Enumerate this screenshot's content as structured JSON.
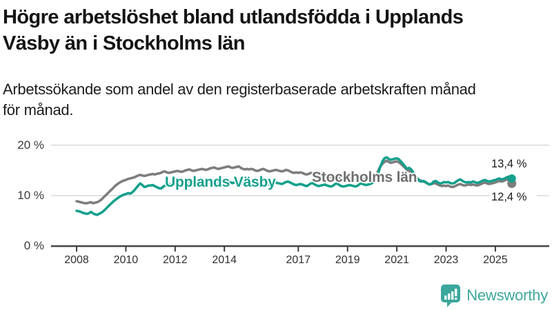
{
  "header": {
    "title_lines": [
      "Högre arbetslöshet bland utlandsfödda i Upplands",
      "Väsby än i Stockholms län"
    ],
    "subtitle_lines": [
      "Arbetssökande som andel av den registerbaserade arbetskraften månad",
      "för månad."
    ]
  },
  "chart_data": {
    "type": "line",
    "title": "Högre arbetslöshet bland utlandsfödda i Upplands Väsby än i Stockholms län",
    "subtitle": "Arbetssökande som andel av den registerbaserade arbetskraften månad för månad.",
    "frequency": "monthly",
    "x_start_year": 2008,
    "x_start_month": 1,
    "x_end_year": 2025,
    "x_end_month": 9,
    "grid": "horizontal",
    "legend_position": "on-line-labels",
    "ylim": [
      0,
      21.5
    ],
    "x_ticks": [
      {
        "value": 2008,
        "label": "2008"
      },
      {
        "value": 2010,
        "label": "2010"
      },
      {
        "value": 2012,
        "label": "2012"
      },
      {
        "value": 2014,
        "label": "2014"
      },
      {
        "value": 2017,
        "label": "2017"
      },
      {
        "value": 2019,
        "label": "2019"
      },
      {
        "value": 2021,
        "label": "2021"
      },
      {
        "value": 2023,
        "label": "2023"
      },
      {
        "value": 2025,
        "label": "2025"
      }
    ],
    "y_ticks": [
      {
        "value": 0,
        "label": "0 %"
      },
      {
        "value": 10,
        "label": "10 %"
      },
      {
        "value": 20,
        "label": "20 %"
      }
    ],
    "series": [
      {
        "name": "Upplands Väsby",
        "color": "#14A08C",
        "end_label": "13,4 %",
        "end_value": 13.4,
        "values": [
          7.0,
          6.9,
          6.8,
          6.6,
          6.5,
          6.4,
          6.5,
          6.8,
          6.5,
          6.3,
          6.2,
          6.4,
          6.6,
          6.9,
          7.3,
          7.7,
          8.1,
          8.5,
          8.9,
          9.2,
          9.5,
          9.8,
          10.0,
          10.2,
          10.3,
          10.5,
          10.4,
          10.6,
          11.0,
          11.5,
          12.0,
          12.4,
          12.1,
          11.7,
          11.8,
          12.0,
          12.0,
          12.1,
          11.9,
          11.7,
          11.5,
          11.4,
          11.7,
          12.0,
          12.2,
          12.3,
          12.2,
          12.1,
          12.2,
          12.3,
          12.2,
          12.1,
          12.2,
          12.4,
          12.6,
          12.7,
          12.5,
          12.4,
          12.3,
          12.4,
          12.5,
          12.6,
          12.5,
          12.4,
          12.5,
          12.7,
          12.9,
          13.0,
          12.8,
          12.6,
          12.5,
          12.6,
          12.7,
          12.8,
          12.7,
          12.6,
          12.5,
          12.6,
          12.8,
          12.9,
          12.7,
          12.5,
          12.4,
          12.5,
          12.4,
          12.5,
          12.6,
          12.4,
          12.3,
          12.5,
          12.8,
          12.9,
          12.6,
          12.3,
          12.2,
          12.3,
          12.4,
          12.6,
          12.5,
          12.4,
          12.3,
          12.5,
          12.7,
          12.8,
          12.6,
          12.4,
          12.2,
          12.1,
          12.2,
          12.3,
          12.2,
          12.0,
          11.9,
          12.1,
          12.4,
          12.5,
          12.2,
          12.0,
          11.9,
          12.0,
          12.1,
          12.2,
          12.0,
          11.9,
          11.8,
          12.0,
          12.3,
          12.4,
          12.1,
          11.9,
          11.8,
          11.9,
          12.0,
          12.1,
          12.0,
          11.9,
          11.8,
          12.0,
          12.3,
          12.4,
          12.2,
          12.1,
          12.2,
          12.3,
          12.5,
          12.7,
          13.2,
          14.5,
          15.8,
          16.8,
          17.4,
          17.6,
          17.3,
          17.1,
          17.2,
          17.3,
          17.4,
          17.2,
          16.8,
          16.3,
          15.8,
          15.3,
          15.5,
          15.2,
          14.6,
          14.0,
          13.4,
          12.9,
          12.8,
          12.9,
          12.7,
          12.4,
          12.2,
          12.4,
          12.8,
          12.9,
          12.6,
          12.4,
          12.5,
          12.7,
          12.6,
          12.7,
          12.5,
          12.4,
          12.5,
          12.8,
          13.1,
          13.2,
          12.9,
          12.7,
          12.6,
          12.7,
          12.6,
          12.8,
          12.7,
          12.5,
          12.6,
          12.8,
          13.0,
          13.1,
          12.9,
          12.8,
          12.9,
          13.0,
          13.1,
          13.3,
          13.4,
          13.2,
          13.3,
          13.5,
          13.7,
          13.8,
          13.4
        ]
      },
      {
        "name": "Stockholms län",
        "color": "#7d7d7d",
        "end_label": "12,4 %",
        "end_value": 12.4,
        "values": [
          8.9,
          8.8,
          8.7,
          8.6,
          8.5,
          8.5,
          8.6,
          8.7,
          8.5,
          8.6,
          8.7,
          8.9,
          9.2,
          9.6,
          10.0,
          10.4,
          10.8,
          11.2,
          11.6,
          12.0,
          12.3,
          12.6,
          12.8,
          13.0,
          13.1,
          13.3,
          13.4,
          13.5,
          13.6,
          13.8,
          14.0,
          14.1,
          14.0,
          13.9,
          14.0,
          14.1,
          14.2,
          14.3,
          14.2,
          14.3,
          14.4,
          14.5,
          14.7,
          14.8,
          14.6,
          14.5,
          14.6,
          14.7,
          14.8,
          14.9,
          14.8,
          14.7,
          14.8,
          15.0,
          15.1,
          15.2,
          15.0,
          14.9,
          15.0,
          15.1,
          15.2,
          15.3,
          15.2,
          15.1,
          15.2,
          15.4,
          15.5,
          15.6,
          15.4,
          15.3,
          15.4,
          15.5,
          15.6,
          15.7,
          15.8,
          15.6,
          15.5,
          15.6,
          15.7,
          15.8,
          15.5,
          15.3,
          15.2,
          15.3,
          15.2,
          15.3,
          15.2,
          15.0,
          14.9,
          15.0,
          15.2,
          15.3,
          15.1,
          14.9,
          14.8,
          14.9,
          15.0,
          15.1,
          15.0,
          14.9,
          14.8,
          14.9,
          15.1,
          15.0,
          14.8,
          14.6,
          14.5,
          14.6,
          14.5,
          14.6,
          14.5,
          14.3,
          14.2,
          14.3,
          14.5,
          14.4,
          14.2,
          14.0,
          13.9,
          14.0,
          13.9,
          14.0,
          13.9,
          13.7,
          13.6,
          13.7,
          13.9,
          13.8,
          13.6,
          13.4,
          13.3,
          13.4,
          13.3,
          13.4,
          13.3,
          13.2,
          13.1,
          13.2,
          13.4,
          13.5,
          13.3,
          13.2,
          13.3,
          13.4,
          13.5,
          13.6,
          14.0,
          15.0,
          15.8,
          16.3,
          16.7,
          16.9,
          16.7,
          16.5,
          16.6,
          16.7,
          16.8,
          16.6,
          16.3,
          15.9,
          15.5,
          15.1,
          14.9,
          14.6,
          14.2,
          13.8,
          13.4,
          13.1,
          12.9,
          12.8,
          12.6,
          12.4,
          12.2,
          12.3,
          12.5,
          12.4,
          12.2,
          12.0,
          11.9,
          12.0,
          11.9,
          12.0,
          11.8,
          11.7,
          11.8,
          12.0,
          12.2,
          12.3,
          12.1,
          12.0,
          12.1,
          12.2,
          12.1,
          12.2,
          12.1,
          12.0,
          12.1,
          12.3,
          12.5,
          12.6,
          12.4,
          12.3,
          12.4,
          12.5,
          12.6,
          12.8,
          12.9,
          12.8,
          12.9,
          13.1,
          13.2,
          13.0,
          12.4
        ]
      }
    ]
  },
  "branding": {
    "logo_text": "Newsworthy",
    "logo_color": "#3CA79C",
    "icon": "bar-chart-speech-bubble-icon"
  },
  "colors": {
    "accent_teal": "#14A08C",
    "series_gray": "#7d7d7d",
    "gridline": "#d8d8d8",
    "axis": "#3d3d3d",
    "text": "#141414"
  }
}
